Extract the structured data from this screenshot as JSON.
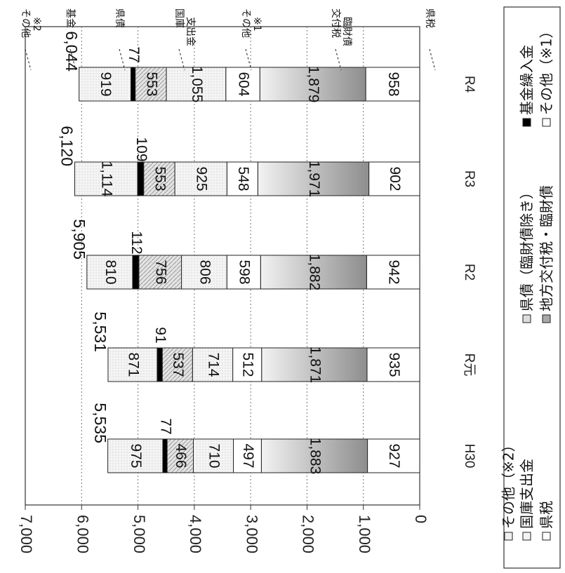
{
  "chart_data": {
    "type": "bar",
    "stacked": true,
    "orientation": "rotated-90-clockwise",
    "categories": [
      "H30",
      "R元",
      "R2",
      "R3",
      "R4"
    ],
    "ylim": [
      0,
      7000
    ],
    "yticks": [
      "0",
      "1,000",
      "2,000",
      "3,000",
      "4,000",
      "5,000",
      "6,000",
      "7,000"
    ],
    "grid": true,
    "series": [
      {
        "name": "県税",
        "values": [
          927,
          935,
          942,
          902,
          958
        ],
        "color": "#ffffff"
      },
      {
        "name": "地方交付税・臨財債",
        "values": [
          1883,
          1871,
          1882,
          1971,
          1879
        ],
        "color": "#a8a8a8"
      },
      {
        "name": "その他（※1）",
        "values": [
          497,
          512,
          598,
          548,
          604
        ],
        "color": "#ffffff"
      },
      {
        "name": "国庫支出金",
        "values": [
          710,
          714,
          806,
          925,
          1055
        ],
        "color": "#f4f4f4"
      },
      {
        "name": "県債（臨財債除き）",
        "values": [
          466,
          537,
          756,
          553,
          553
        ],
        "color": "#dcdcdc"
      },
      {
        "name": "基金繰入金",
        "values": [
          77,
          91,
          112,
          109,
          77
        ],
        "color": "#000000"
      },
      {
        "name": "その他（※2）",
        "values": [
          975,
          871,
          810,
          1114,
          919
        ],
        "color": "#f0f0f0"
      }
    ],
    "value_labels": [
      [
        "927",
        "935",
        "942",
        "902",
        "958"
      ],
      [
        "1,883",
        "1,871",
        "1,882",
        "1,971",
        "1,879"
      ],
      [
        "497",
        "512",
        "598",
        "548",
        "604"
      ],
      [
        "710",
        "714",
        "806",
        "925",
        "1,055"
      ],
      [
        "466",
        "537",
        "756",
        "553",
        "553"
      ],
      [
        "77",
        "91",
        "112",
        "109",
        "77"
      ],
      [
        "975",
        "871",
        "810",
        "1,114",
        "919"
      ]
    ],
    "totals": [
      5535,
      5531,
      5905,
      6120,
      6044
    ],
    "total_labels": [
      "5,535",
      "5,531",
      "5,905",
      "6,120",
      "6,044"
    ],
    "annotations": [
      {
        "text": "その他",
        "text2": "※2"
      },
      {
        "text": "基金",
        "text2": ""
      },
      {
        "text": "県債",
        "text2": ""
      },
      {
        "text": "国庫",
        "text2": "支出金"
      },
      {
        "text": "その他",
        "text2": "※1"
      },
      {
        "text": "交付税",
        "text2": "臨財債"
      },
      {
        "text": "県税",
        "text2": ""
      }
    ],
    "legend": {
      "placement": "bottom",
      "items": [
        "県税",
        "地方交付税・臨財債",
        "その他（※1）",
        "国庫支出金",
        "県債（臨財債除き）",
        "基金繰入金",
        "その他（※2）"
      ]
    }
  }
}
